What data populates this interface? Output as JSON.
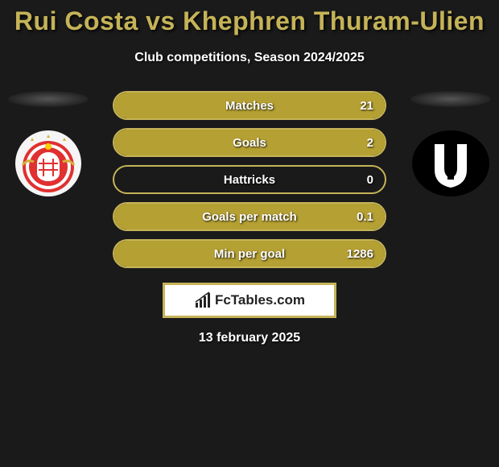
{
  "title": "Rui Costa vs Khephren Thuram-Ulien",
  "subtitle": "Club competitions, Season 2024/2025",
  "date": "13 february 2025",
  "colors": {
    "accent": "#b5a033",
    "background": "#1a1a1a",
    "text": "#ffffff",
    "border": "#c5b358"
  },
  "brand": {
    "name": "FcTables.com"
  },
  "player_left": {
    "name": "Rui Costa",
    "club": "Benfica"
  },
  "player_right": {
    "name": "Khephren Thuram-Ulien",
    "club": "Juventus"
  },
  "stats": [
    {
      "label": "Matches",
      "left_value": "",
      "right_value": "21",
      "left_pct": 0,
      "right_pct": 100,
      "fill_color": "#b5a033",
      "border_color": "#c5b358"
    },
    {
      "label": "Goals",
      "left_value": "",
      "right_value": "2",
      "left_pct": 0,
      "right_pct": 100,
      "fill_color": "#b5a033",
      "border_color": "#c5b358"
    },
    {
      "label": "Hattricks",
      "left_value": "",
      "right_value": "0",
      "left_pct": 0,
      "right_pct": 0,
      "fill_color": "#b5a033",
      "border_color": "#c5b358"
    },
    {
      "label": "Goals per match",
      "left_value": "",
      "right_value": "0.1",
      "left_pct": 0,
      "right_pct": 100,
      "fill_color": "#b5a033",
      "border_color": "#c5b358"
    },
    {
      "label": "Min per goal",
      "left_value": "",
      "right_value": "1286",
      "left_pct": 0,
      "right_pct": 100,
      "fill_color": "#b5a033",
      "border_color": "#c5b358"
    }
  ]
}
